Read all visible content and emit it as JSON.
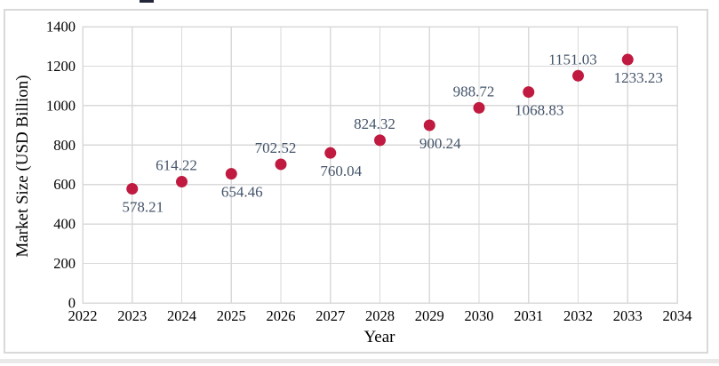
{
  "chart_data": {
    "type": "scatter",
    "xlabel": "Year",
    "ylabel": "Market Size (USD Billion)",
    "x": [
      2023,
      2024,
      2025,
      2026,
      2027,
      2028,
      2029,
      2030,
      2031,
      2032,
      2033
    ],
    "values": [
      578.21,
      614.22,
      654.46,
      702.52,
      760.04,
      824.32,
      900.24,
      988.72,
      1068.83,
      1151.03,
      1233.23
    ],
    "point_labels": [
      "578.21",
      "614.22",
      "654.46",
      "702.52",
      "760.04",
      "824.32",
      "900.24",
      "988.72",
      "1068.83",
      "1151.03",
      "1233.23"
    ],
    "label_positions": [
      "below",
      "above",
      "below",
      "above",
      "below",
      "above",
      "below",
      "above",
      "below",
      "above",
      "below"
    ],
    "x_ticks": [
      2022,
      2023,
      2024,
      2025,
      2026,
      2027,
      2028,
      2029,
      2030,
      2031,
      2032,
      2033,
      2034
    ],
    "y_ticks": [
      0,
      200,
      400,
      600,
      800,
      1000,
      1200,
      1400
    ],
    "xlim": [
      2022,
      2034
    ],
    "ylim": [
      0,
      1400
    ],
    "grid": true,
    "legend_position": "none",
    "colors": {
      "marker": "#c01a40",
      "data_label": "#44546a",
      "axis_text": "#000000",
      "gridline": "#d9d9d9",
      "chart_border": "#d9d9d9"
    }
  }
}
